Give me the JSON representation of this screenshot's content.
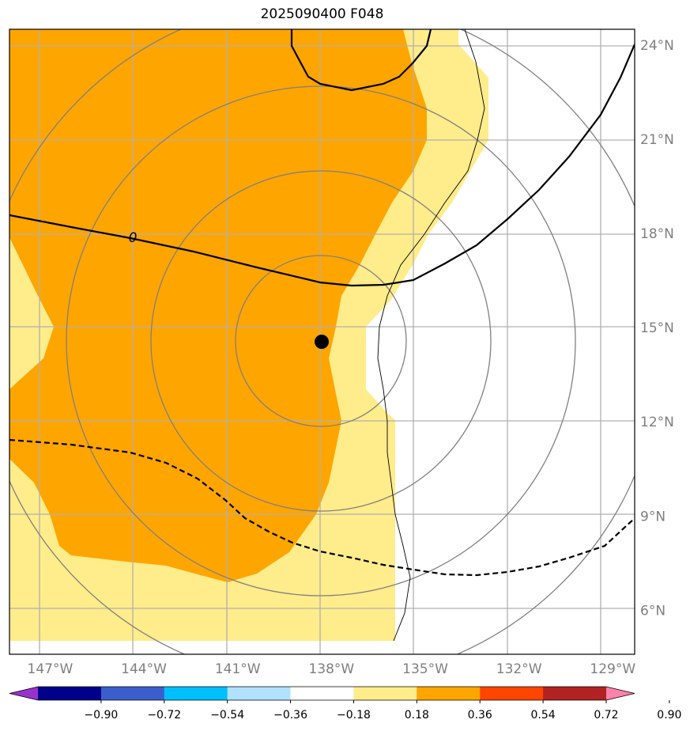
{
  "chart_data": {
    "type": "map",
    "title": "2025090400 F048",
    "projection": "lat-lon",
    "lon_range": [
      -148.3,
      -128.3
    ],
    "lat_range": [
      4.6,
      24.5
    ],
    "lon_ticks": [
      {
        "value": -147,
        "label": "147°W"
      },
      {
        "value": -144,
        "label": "144°W"
      },
      {
        "value": -141,
        "label": "141°W"
      },
      {
        "value": -138,
        "label": "138°W"
      },
      {
        "value": -135,
        "label": "135°W"
      },
      {
        "value": -132,
        "label": "132°W"
      },
      {
        "value": -129,
        "label": "129°W"
      }
    ],
    "lat_ticks": [
      {
        "value": 24,
        "label": "24°N"
      },
      {
        "value": 21,
        "label": "21°N"
      },
      {
        "value": 18,
        "label": "18°N"
      },
      {
        "value": 15,
        "label": "15°N"
      },
      {
        "value": 12,
        "label": "12°N"
      },
      {
        "value": 9,
        "label": "9°N"
      },
      {
        "value": 6,
        "label": "6°N"
      }
    ],
    "grid": true,
    "center": {
      "lon": -138.0,
      "lat": 14.55
    },
    "range_rings_deg": [
      2.7,
      5.5,
      8.3,
      11.1
    ],
    "contour_label": "0",
    "colorbar": {
      "orientation": "horizontal",
      "extend": "both",
      "tick_labels": [
        "−0.90",
        "−0.72",
        "−0.54",
        "−0.36",
        "−0.18",
        "0.18",
        "0.36",
        "0.54",
        "0.72",
        "0.90"
      ],
      "colors": [
        "#9932cc",
        "#00008b",
        "#3a5fcd",
        "#00bfff",
        "#b0e2ff",
        "#ffffff",
        "#ffec8b",
        "#ffa500",
        "#ff4500",
        "#b22222",
        "#ff82ab"
      ]
    },
    "fill_colors": {
      "light": "#ffec8b",
      "orange": "#ffa500"
    }
  }
}
